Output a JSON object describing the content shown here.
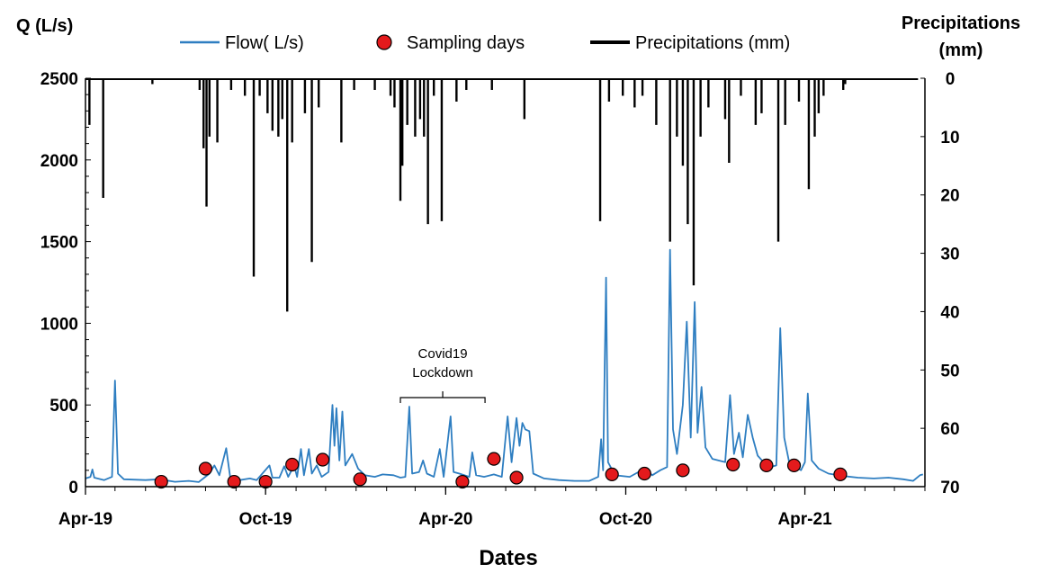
{
  "chart_data": {
    "type": "line",
    "title": "",
    "xlabel": "Dates",
    "ylabel_left": "Q (L/s)",
    "ylabel_right": [
      "Precipitations",
      "(mm)"
    ],
    "x_ticks": [
      "Apr-19",
      "Oct-19",
      "Apr-20",
      "Oct-20",
      "Apr-21"
    ],
    "x_tick_dates": [
      "2019-04-01",
      "2019-10-01",
      "2020-04-01",
      "2020-10-01",
      "2021-04-01"
    ],
    "x_range": [
      "2019-04-01",
      "2021-08-01"
    ],
    "ylim_left": [
      0,
      2500
    ],
    "yticks_left": [
      "0",
      "500",
      "1000",
      "1500",
      "2000",
      "2500"
    ],
    "ylim_right": [
      0,
      70
    ],
    "right_axis_inverted": true,
    "yticks_right": [
      "0",
      "10",
      "20",
      "30",
      "40",
      "50",
      "60",
      "70"
    ],
    "legend": {
      "position": "top",
      "items": [
        "Flow( L/s)",
        "Sampling days",
        "Precipitations (mm)"
      ]
    },
    "colors": {
      "flow": "#2E7EC1",
      "sampling": "#E41A1C",
      "precip": "#000000"
    },
    "series": [
      {
        "name": "Flow( L/s)",
        "axis": "left",
        "points": [
          [
            "2019-04-01",
            50
          ],
          [
            "2019-04-06",
            60
          ],
          [
            "2019-04-08",
            105
          ],
          [
            "2019-04-10",
            55
          ],
          [
            "2019-04-20",
            40
          ],
          [
            "2019-04-28",
            60
          ],
          [
            "2019-05-01",
            650
          ],
          [
            "2019-05-04",
            80
          ],
          [
            "2019-05-10",
            45
          ],
          [
            "2019-06-01",
            40
          ],
          [
            "2019-06-15",
            45
          ],
          [
            "2019-07-01",
            30
          ],
          [
            "2019-07-15",
            35
          ],
          [
            "2019-07-25",
            28
          ],
          [
            "2019-08-05",
            80
          ],
          [
            "2019-08-10",
            130
          ],
          [
            "2019-08-15",
            70
          ],
          [
            "2019-08-22",
            235
          ],
          [
            "2019-08-26",
            60
          ],
          [
            "2019-09-05",
            40
          ],
          [
            "2019-09-15",
            50
          ],
          [
            "2019-09-22",
            40
          ],
          [
            "2019-10-05",
            130
          ],
          [
            "2019-10-08",
            55
          ],
          [
            "2019-10-15",
            55
          ],
          [
            "2019-10-20",
            125
          ],
          [
            "2019-10-24",
            60
          ],
          [
            "2019-10-30",
            130
          ],
          [
            "2019-11-02",
            60
          ],
          [
            "2019-11-06",
            230
          ],
          [
            "2019-11-09",
            70
          ],
          [
            "2019-11-14",
            230
          ],
          [
            "2019-11-17",
            80
          ],
          [
            "2019-11-22",
            130
          ],
          [
            "2019-11-27",
            60
          ],
          [
            "2019-12-04",
            90
          ],
          [
            "2019-12-08",
            500
          ],
          [
            "2019-12-10",
            250
          ],
          [
            "2019-12-12",
            480
          ],
          [
            "2019-12-15",
            160
          ],
          [
            "2019-12-18",
            460
          ],
          [
            "2019-12-21",
            130
          ],
          [
            "2019-12-28",
            200
          ],
          [
            "2020-01-03",
            110
          ],
          [
            "2020-01-10",
            70
          ],
          [
            "2020-01-20",
            60
          ],
          [
            "2020-01-28",
            75
          ],
          [
            "2020-02-08",
            70
          ],
          [
            "2020-02-15",
            55
          ],
          [
            "2020-02-20",
            60
          ],
          [
            "2020-02-24",
            490
          ],
          [
            "2020-02-27",
            80
          ],
          [
            "2020-03-05",
            90
          ],
          [
            "2020-03-09",
            160
          ],
          [
            "2020-03-13",
            80
          ],
          [
            "2020-03-20",
            60
          ],
          [
            "2020-03-26",
            230
          ],
          [
            "2020-03-30",
            60
          ],
          [
            "2020-04-06",
            430
          ],
          [
            "2020-04-09",
            90
          ],
          [
            "2020-04-15",
            80
          ],
          [
            "2020-04-25",
            60
          ],
          [
            "2020-04-28",
            210
          ],
          [
            "2020-05-02",
            70
          ],
          [
            "2020-05-10",
            60
          ],
          [
            "2020-05-20",
            75
          ],
          [
            "2020-05-28",
            60
          ],
          [
            "2020-06-03",
            430
          ],
          [
            "2020-06-07",
            150
          ],
          [
            "2020-06-12",
            420
          ],
          [
            "2020-06-15",
            250
          ],
          [
            "2020-06-18",
            390
          ],
          [
            "2020-06-21",
            350
          ],
          [
            "2020-06-25",
            340
          ],
          [
            "2020-06-29",
            80
          ],
          [
            "2020-07-10",
            50
          ],
          [
            "2020-07-25",
            40
          ],
          [
            "2020-08-10",
            35
          ],
          [
            "2020-08-25",
            35
          ],
          [
            "2020-09-03",
            60
          ],
          [
            "2020-09-06",
            290
          ],
          [
            "2020-09-08",
            100
          ],
          [
            "2020-09-11",
            1280
          ],
          [
            "2020-09-13",
            150
          ],
          [
            "2020-09-20",
            70
          ],
          [
            "2020-10-05",
            60
          ],
          [
            "2020-10-20",
            110
          ],
          [
            "2020-10-28",
            70
          ],
          [
            "2020-11-05",
            100
          ],
          [
            "2020-11-12",
            120
          ],
          [
            "2020-11-15",
            1450
          ],
          [
            "2020-11-18",
            350
          ],
          [
            "2020-11-22",
            200
          ],
          [
            "2020-11-28",
            500
          ],
          [
            "2020-12-02",
            1010
          ],
          [
            "2020-12-06",
            300
          ],
          [
            "2020-12-10",
            1130
          ],
          [
            "2020-12-13",
            330
          ],
          [
            "2020-12-17",
            610
          ],
          [
            "2020-12-21",
            240
          ],
          [
            "2020-12-28",
            170
          ],
          [
            "2021-01-10",
            150
          ],
          [
            "2021-01-15",
            560
          ],
          [
            "2021-01-19",
            200
          ],
          [
            "2021-01-24",
            330
          ],
          [
            "2021-01-28",
            180
          ],
          [
            "2021-02-02",
            440
          ],
          [
            "2021-02-07",
            300
          ],
          [
            "2021-02-12",
            190
          ],
          [
            "2021-02-18",
            150
          ],
          [
            "2021-02-25",
            120
          ],
          [
            "2021-03-03",
            130
          ],
          [
            "2021-03-07",
            970
          ],
          [
            "2021-03-11",
            300
          ],
          [
            "2021-03-16",
            150
          ],
          [
            "2021-03-23",
            120
          ],
          [
            "2021-03-28",
            100
          ],
          [
            "2021-04-01",
            150
          ],
          [
            "2021-04-04",
            570
          ],
          [
            "2021-04-08",
            160
          ],
          [
            "2021-04-15",
            110
          ],
          [
            "2021-04-25",
            80
          ],
          [
            "2021-05-10",
            65
          ],
          [
            "2021-05-25",
            55
          ],
          [
            "2021-06-10",
            50
          ],
          [
            "2021-06-25",
            55
          ],
          [
            "2021-07-10",
            45
          ],
          [
            "2021-07-20",
            35
          ],
          [
            "2021-07-27",
            70
          ],
          [
            "2021-07-30",
            75
          ]
        ]
      },
      {
        "name": "Sampling days",
        "axis": "left",
        "points": [
          [
            "2019-06-17",
            30
          ],
          [
            "2019-08-01",
            110
          ],
          [
            "2019-08-30",
            30
          ],
          [
            "2019-10-01",
            30
          ],
          [
            "2019-10-28",
            135
          ],
          [
            "2019-11-28",
            165
          ],
          [
            "2020-01-05",
            45
          ],
          [
            "2020-04-18",
            30
          ],
          [
            "2020-05-20",
            170
          ],
          [
            "2020-06-12",
            55
          ],
          [
            "2020-09-17",
            75
          ],
          [
            "2020-10-20",
            80
          ],
          [
            "2020-11-28",
            100
          ],
          [
            "2021-01-18",
            135
          ],
          [
            "2021-02-21",
            130
          ],
          [
            "2021-03-21",
            130
          ],
          [
            "2021-05-07",
            75
          ]
        ]
      },
      {
        "name": "Precipitations (mm)",
        "axis": "right",
        "points": [
          [
            "2019-04-05",
            8
          ],
          [
            "2019-04-19",
            20.5
          ],
          [
            "2019-06-08",
            1
          ],
          [
            "2019-07-26",
            2
          ],
          [
            "2019-07-30",
            12
          ],
          [
            "2019-08-02",
            22
          ],
          [
            "2019-08-05",
            10
          ],
          [
            "2019-08-13",
            11
          ],
          [
            "2019-08-27",
            2
          ],
          [
            "2019-09-10",
            3
          ],
          [
            "2019-09-19",
            34
          ],
          [
            "2019-09-25",
            3
          ],
          [
            "2019-10-03",
            6
          ],
          [
            "2019-10-08",
            9
          ],
          [
            "2019-10-14",
            10
          ],
          [
            "2019-10-18",
            7
          ],
          [
            "2019-10-23",
            40
          ],
          [
            "2019-10-28",
            11
          ],
          [
            "2019-11-10",
            6
          ],
          [
            "2019-11-17",
            31.5
          ],
          [
            "2019-11-24",
            5
          ],
          [
            "2019-12-17",
            11
          ],
          [
            "2019-12-30",
            2
          ],
          [
            "2020-01-20",
            2
          ],
          [
            "2020-02-05",
            3
          ],
          [
            "2020-02-09",
            5
          ],
          [
            "2020-02-15",
            21
          ],
          [
            "2020-02-17",
            15
          ],
          [
            "2020-02-22",
            8
          ],
          [
            "2020-03-01",
            10
          ],
          [
            "2020-03-06",
            7
          ],
          [
            "2020-03-10",
            10
          ],
          [
            "2020-03-14",
            25
          ],
          [
            "2020-03-20",
            3
          ],
          [
            "2020-03-28",
            24.5
          ],
          [
            "2020-04-12",
            4
          ],
          [
            "2020-04-22",
            2
          ],
          [
            "2020-05-18",
            2
          ],
          [
            "2020-06-20",
            7
          ],
          [
            "2020-09-05",
            24.5
          ],
          [
            "2020-09-14",
            4
          ],
          [
            "2020-09-28",
            3
          ],
          [
            "2020-10-10",
            5
          ],
          [
            "2020-10-18",
            3
          ],
          [
            "2020-11-01",
            8
          ],
          [
            "2020-11-15",
            28
          ],
          [
            "2020-11-22",
            10
          ],
          [
            "2020-11-28",
            15
          ],
          [
            "2020-12-03",
            25
          ],
          [
            "2020-12-09",
            35.5
          ],
          [
            "2020-12-16",
            10
          ],
          [
            "2020-12-24",
            5
          ],
          [
            "2021-01-10",
            7
          ],
          [
            "2021-01-14",
            14.5
          ],
          [
            "2021-01-26",
            3
          ],
          [
            "2021-02-10",
            8
          ],
          [
            "2021-02-16",
            6
          ],
          [
            "2021-03-05",
            28
          ],
          [
            "2021-03-12",
            8
          ],
          [
            "2021-03-26",
            4
          ],
          [
            "2021-04-05",
            19
          ],
          [
            "2021-04-11",
            10
          ],
          [
            "2021-04-15",
            6
          ],
          [
            "2021-04-20",
            3
          ],
          [
            "2021-05-10",
            2
          ],
          [
            "2021-05-12",
            1
          ]
        ]
      }
    ],
    "annotations": [
      {
        "text_lines": [
          "Covid19",
          "Lockdown"
        ],
        "bracket_from": "2020-02-15",
        "bracket_to": "2020-05-11"
      }
    ]
  }
}
